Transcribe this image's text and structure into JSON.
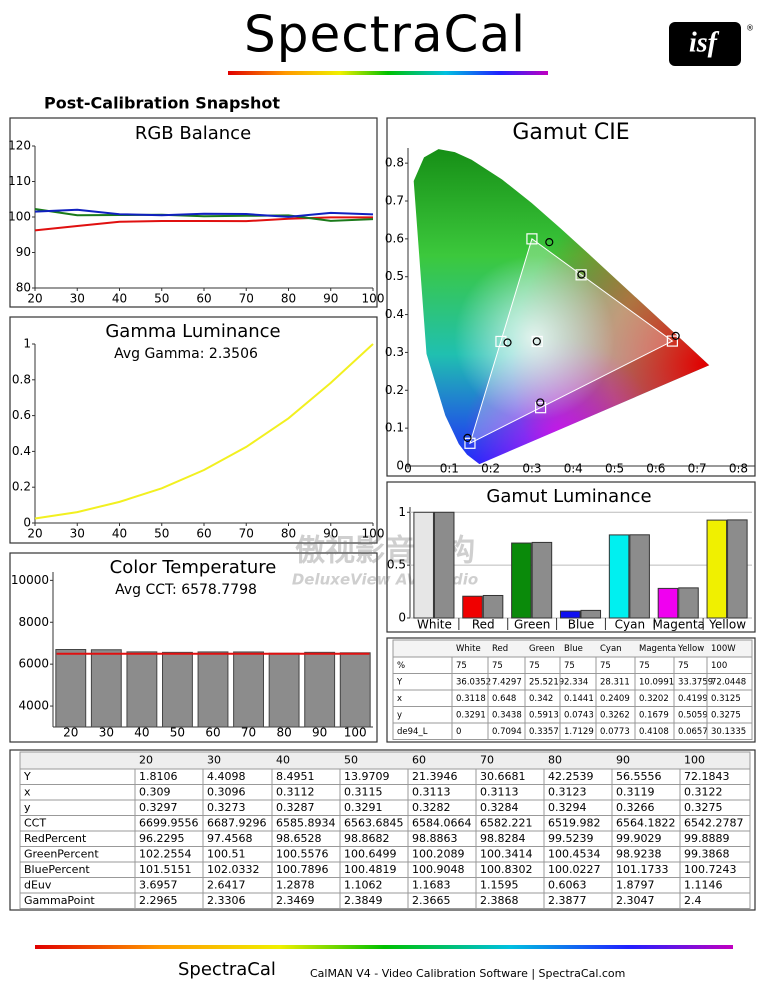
{
  "header": {
    "logo": "SpectraCal",
    "badge": "isf",
    "badge_mark": "®",
    "title": "Post-Calibration Snapshot"
  },
  "watermark": {
    "line1": "傲视影音机构",
    "line2": "DeluxeView AV Studio"
  },
  "chart_data": [
    {
      "type": "line",
      "title": "RGB Balance",
      "x": [
        20,
        30,
        40,
        50,
        60,
        70,
        80,
        90,
        100
      ],
      "xlim": [
        20,
        100
      ],
      "xticks": [
        20,
        30,
        40,
        50,
        60,
        70,
        80,
        90,
        100
      ],
      "ylim": [
        80,
        120
      ],
      "yticks": [
        80,
        90,
        100,
        110,
        120
      ],
      "series": [
        {
          "color": "#e01010",
          "values": [
            96.2295,
            97.4568,
            98.6528,
            98.8682,
            98.8863,
            98.8284,
            99.5239,
            99.9029,
            99.8889
          ]
        },
        {
          "color": "#1a7a1a",
          "values": [
            102.2554,
            100.51,
            100.5576,
            100.6499,
            100.2089,
            100.3414,
            100.4534,
            98.9238,
            99.3868
          ]
        },
        {
          "color": "#1020c0",
          "values": [
            101.5151,
            102.0332,
            100.7896,
            100.4819,
            100.9048,
            100.8302,
            100.0227,
            101.1733,
            100.7243
          ]
        }
      ]
    },
    {
      "type": "line",
      "title": "Gamma Luminance",
      "subtitle": "Avg Gamma: 2.3506",
      "x": [
        20,
        30,
        40,
        50,
        60,
        70,
        80,
        90,
        100
      ],
      "xlim": [
        20,
        100
      ],
      "xticks": [
        20,
        30,
        40,
        50,
        60,
        70,
        80,
        90,
        100
      ],
      "ylim": [
        0,
        1
      ],
      "yticks": [
        0,
        0.2,
        0.4,
        0.6,
        0.8,
        1
      ],
      "series": [
        {
          "color": "#f2f020",
          "values": [
            0.025,
            0.061,
            0.118,
            0.194,
            0.296,
            0.425,
            0.585,
            0.783,
            1
          ]
        }
      ]
    },
    {
      "type": "bar",
      "title": "Color Temperature",
      "subtitle": "Avg CCT: 6578.7798",
      "categories": [
        "20",
        "30",
        "40",
        "50",
        "60",
        "70",
        "80",
        "90",
        "100"
      ],
      "values": [
        6699.9556,
        6687.9296,
        6585.8934,
        6563.6845,
        6584.0664,
        6582.221,
        6519.982,
        6564.1822,
        6542.2787
      ],
      "color": "#8c8c8c",
      "target": 6500,
      "target_color": "#e01010",
      "ylim": [
        3000,
        10400
      ],
      "yticks": [
        4000,
        6000,
        8000,
        10000
      ]
    },
    {
      "type": "scatter",
      "title": "Gamut CIE",
      "xlim": [
        0,
        0.84
      ],
      "ylim": [
        0,
        0.84
      ],
      "xticks": [
        0,
        0.1,
        0.2,
        0.3,
        0.4,
        0.5,
        0.6,
        0.7,
        0.8
      ],
      "yticks": [
        0,
        0.1,
        0.2,
        0.3,
        0.4,
        0.5,
        0.6,
        0.7,
        0.8
      ],
      "series": [
        {
          "marker": "square",
          "color": "#ffffff",
          "x": [
            0.3127,
            0.64,
            0.3,
            0.15,
            0.225,
            0.321,
            0.419
          ],
          "y": [
            0.329,
            0.33,
            0.6,
            0.06,
            0.329,
            0.154,
            0.505
          ]
        },
        {
          "marker": "circle",
          "color": "#000000",
          "x": [
            0.3118,
            0.648,
            0.342,
            0.1441,
            0.2409,
            0.3202,
            0.4199
          ],
          "y": [
            0.3291,
            0.3438,
            0.5913,
            0.0743,
            0.3262,
            0.1679,
            0.5059
          ]
        }
      ]
    },
    {
      "type": "grouped_bar",
      "title": "Gamut Luminance",
      "categories": [
        "White",
        "Red",
        "Green",
        "Blue",
        "Cyan",
        "Magenta",
        "Yellow"
      ],
      "ylim": [
        0,
        1.05
      ],
      "yticks": [
        0,
        0.5,
        1
      ],
      "series": [
        {
          "colors": [
            "#e6e6e6",
            "#f00000",
            "#0a8a0a",
            "#1010f0",
            "#00f0f0",
            "#f000f0",
            "#f0f000"
          ],
          "values": [
            1,
            0.206,
            0.709,
            0.065,
            0.786,
            0.28,
            0.926
          ]
        },
        {
          "color": "#8c8c8c",
          "values": [
            1,
            0.213,
            0.715,
            0.072,
            0.787,
            0.285,
            0.928
          ]
        }
      ]
    }
  ],
  "small_table": {
    "header": [
      "White",
      "Red",
      "Green",
      "Blue",
      "Cyan",
      "Magenta",
      "Yellow",
      "100W"
    ],
    "rows": [
      [
        "%",
        "75",
        "75",
        "75",
        "75",
        "75",
        "75",
        "75",
        "100"
      ],
      [
        "Y",
        "36.0352",
        "7.4297",
        "25.5219",
        "2.334",
        "28.311",
        "10.0991",
        "33.3759",
        "72.0448"
      ],
      [
        "x",
        "0.3118",
        "0.648",
        "0.342",
        "0.1441",
        "0.2409",
        "0.3202",
        "0.4199",
        "0.3125"
      ],
      [
        "y",
        "0.3291",
        "0.3438",
        "0.5913",
        "0.0743",
        "0.3262",
        "0.1679",
        "0.5059",
        "0.3275"
      ],
      [
        "de94_L",
        "0",
        "0.7094",
        "0.3357",
        "1.7129",
        "0.0773",
        "0.4108",
        "0.0657",
        "30.1335"
      ]
    ]
  },
  "big_table": {
    "header": [
      "20",
      "30",
      "40",
      "50",
      "60",
      "70",
      "80",
      "90",
      "100"
    ],
    "rows": [
      [
        "Y",
        "1.8106",
        "4.4098",
        "8.4951",
        "13.9709",
        "21.3946",
        "30.6681",
        "42.2539",
        "56.5556",
        "72.1843"
      ],
      [
        "x",
        "0.309",
        "0.3096",
        "0.3112",
        "0.3115",
        "0.3113",
        "0.3113",
        "0.3123",
        "0.3119",
        "0.3122"
      ],
      [
        "y",
        "0.3297",
        "0.3273",
        "0.3287",
        "0.3291",
        "0.3282",
        "0.3284",
        "0.3294",
        "0.3266",
        "0.3275"
      ],
      [
        "CCT",
        "6699.9556",
        "6687.9296",
        "6585.8934",
        "6563.6845",
        "6584.0664",
        "6582.221",
        "6519.982",
        "6564.1822",
        "6542.2787"
      ],
      [
        "RedPercent",
        "96.2295",
        "97.4568",
        "98.6528",
        "98.8682",
        "98.8863",
        "98.8284",
        "99.5239",
        "99.9029",
        "99.8889"
      ],
      [
        "GreenPercent",
        "102.2554",
        "100.51",
        "100.5576",
        "100.6499",
        "100.2089",
        "100.3414",
        "100.4534",
        "98.9238",
        "99.3868"
      ],
      [
        "BluePercent",
        "101.5151",
        "102.0332",
        "100.7896",
        "100.4819",
        "100.9048",
        "100.8302",
        "100.0227",
        "101.1733",
        "100.7243"
      ],
      [
        "dEuv",
        "3.6957",
        "2.6417",
        "1.2878",
        "1.1062",
        "1.1683",
        "1.1595",
        "0.6063",
        "1.8797",
        "1.1146"
      ],
      [
        "GammaPoint",
        "2.2965",
        "2.3306",
        "2.3469",
        "2.3849",
        "2.3665",
        "2.3868",
        "2.3877",
        "2.3047",
        "2.4"
      ]
    ]
  },
  "footer": {
    "logo": "SpectraCal",
    "text": "CalMAN V4 - Video Calibration Software | SpectraCal.com"
  }
}
